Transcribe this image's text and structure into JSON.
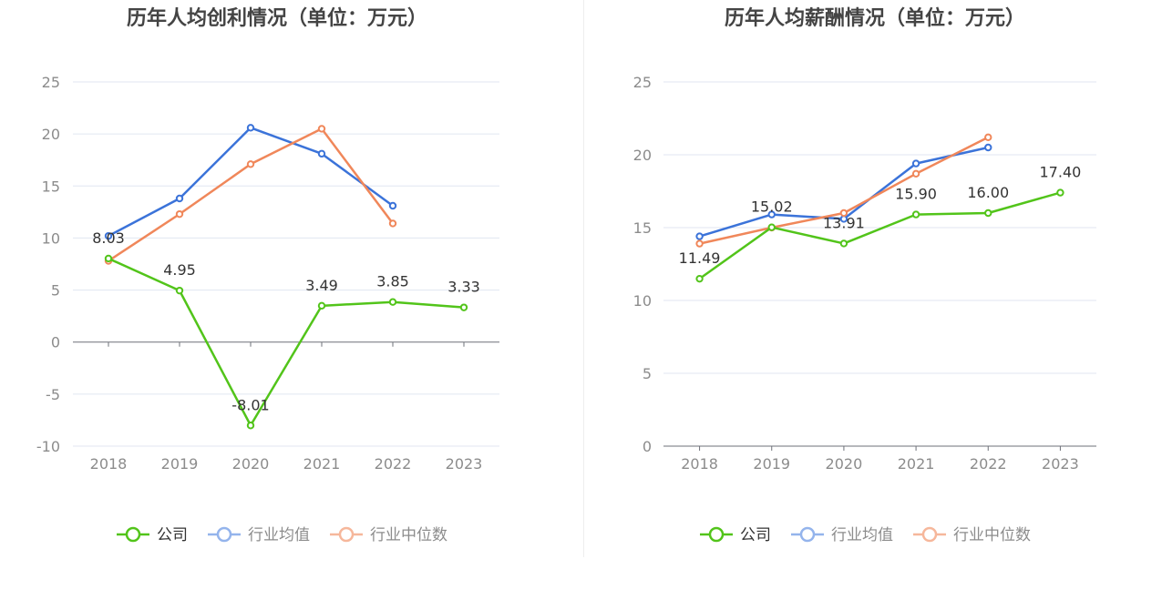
{
  "chart_data": [
    {
      "type": "line",
      "title": "历年人均创利情况（单位：万元）",
      "xlabel": "",
      "ylabel": "",
      "categories": [
        "2018",
        "2019",
        "2020",
        "2021",
        "2022",
        "2023"
      ],
      "ylim": [
        -10,
        25
      ],
      "yticks": [
        -10,
        -5,
        0,
        5,
        10,
        15,
        20,
        25
      ],
      "grid": true,
      "legend_position": "bottom",
      "series": [
        {
          "name": "公司",
          "color": "#52c41a",
          "values": [
            8.03,
            4.95,
            -8.01,
            3.49,
            3.85,
            3.33
          ],
          "labeled": true
        },
        {
          "name": "行业均值",
          "color": "#3b73d9",
          "values": [
            10.2,
            13.8,
            20.6,
            18.1,
            13.1,
            null
          ],
          "labeled": false
        },
        {
          "name": "行业中位数",
          "color": "#f0875a",
          "values": [
            7.8,
            12.3,
            17.1,
            20.5,
            11.4,
            null
          ],
          "labeled": false
        }
      ]
    },
    {
      "type": "line",
      "title": "历年人均薪酬情况（单位：万元）",
      "xlabel": "",
      "ylabel": "",
      "categories": [
        "2018",
        "2019",
        "2020",
        "2021",
        "2022",
        "2023"
      ],
      "ylim": [
        0,
        25
      ],
      "yticks": [
        0,
        5,
        10,
        15,
        20,
        25
      ],
      "grid": true,
      "legend_position": "bottom",
      "series": [
        {
          "name": "公司",
          "color": "#52c41a",
          "values": [
            11.49,
            15.02,
            13.91,
            15.9,
            16.0,
            17.4
          ],
          "labeled": true
        },
        {
          "name": "行业均值",
          "color": "#3b73d9",
          "values": [
            14.4,
            15.9,
            15.6,
            19.4,
            20.5,
            null
          ],
          "labeled": false
        },
        {
          "name": "行业中位数",
          "color": "#f0875a",
          "values": [
            13.9,
            15.0,
            16.0,
            18.7,
            21.2,
            null
          ],
          "labeled": false
        }
      ]
    }
  ]
}
